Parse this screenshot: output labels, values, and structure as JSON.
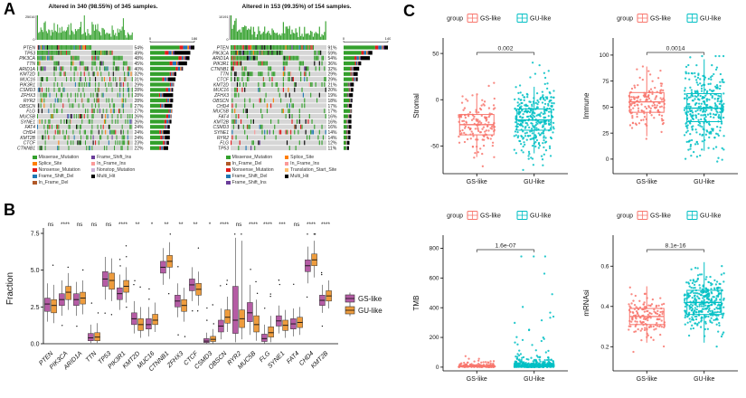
{
  "figure": {
    "panel_a_label": "A",
    "panel_b_label": "B",
    "panel_c_label": "C"
  },
  "colors": {
    "gs_b": "#B55CA5",
    "gu_b": "#EE9C3D",
    "gs_c": "#F8766D",
    "gu_c": "#00BFC4",
    "onco_bg": "#D6D6D6",
    "onco_bar_green": "#33A02C",
    "axis": "#000000"
  },
  "mutation_palette": [
    {
      "type": "Missense_Mutation",
      "color": "#33A02C",
      "w": 0.7
    },
    {
      "type": "Multi_Hit",
      "color": "#000000",
      "w": 0.1
    },
    {
      "type": "Nonsense_Mutation",
      "color": "#E31A1C",
      "w": 0.055
    },
    {
      "type": "Frame_Shift_Del",
      "color": "#1F78B4",
      "w": 0.055
    },
    {
      "type": "Splice_Site",
      "color": "#FF7F00",
      "w": 0.04
    },
    {
      "type": "Frame_Shift_Ins",
      "color": "#6A3D9A",
      "w": 0.025
    },
    {
      "type": "In_Frame_Del",
      "color": "#B15928",
      "w": 0.012
    },
    {
      "type": "In_Frame_Ins",
      "color": "#FB9A99",
      "w": 0.008
    },
    {
      "type": "Nonstop_Mutation",
      "color": "#CAB2D6",
      "w": 0.005
    }
  ],
  "chart_data": [
    {
      "type": "oncoprint",
      "title": "Altered in 340 (98.55%) of 345 samples.",
      "n_samples": 345,
      "tmb_axis": {
        "max": "25016",
        "min": "0"
      },
      "bar_axis": {
        "min": "0",
        "max": "186"
      },
      "genes": [
        {
          "name": "PTEN",
          "pct": 54
        },
        {
          "name": "TP53",
          "pct": 49
        },
        {
          "name": "PIK3CA",
          "pct": 48
        },
        {
          "name": "TTN",
          "pct": 45
        },
        {
          "name": "ARID1A",
          "pct": 40
        },
        {
          "name": "KMT2D",
          "pct": 32
        },
        {
          "name": "MUC16",
          "pct": 31
        },
        {
          "name": "PIK3R1",
          "pct": 29
        },
        {
          "name": "CSMD3",
          "pct": 28
        },
        {
          "name": "ZFHX3",
          "pct": 28
        },
        {
          "name": "RYR2",
          "pct": 28
        },
        {
          "name": "OBSCN",
          "pct": 27
        },
        {
          "name": "FLG",
          "pct": 27
        },
        {
          "name": "MUC5B",
          "pct": 26
        },
        {
          "name": "SYNE1",
          "pct": 26
        },
        {
          "name": "FAT4",
          "pct": 24
        },
        {
          "name": "CHD4",
          "pct": 24
        },
        {
          "name": "KMT2B",
          "pct": 24
        },
        {
          "name": "CTCF",
          "pct": 23
        },
        {
          "name": "CTNNB1",
          "pct": 22
        }
      ],
      "legend": [
        [
          {
            "label": "Missense_Mutation",
            "color": "#33A02C"
          },
          {
            "label": "Splice_Site",
            "color": "#FF7F00"
          },
          {
            "label": "Nonsense_Mutation",
            "color": "#E31A1C"
          },
          {
            "label": "Frame_Shift_Del",
            "color": "#1F78B4"
          },
          {
            "label": "In_Frame_Del",
            "color": "#B15928"
          }
        ],
        [
          {
            "label": "Frame_Shift_Ins",
            "color": "#6A3D9A"
          },
          {
            "label": "In_Frame_Ins",
            "color": "#FB9A99"
          },
          {
            "label": "Nonstop_Mutation",
            "color": "#CAB2D6"
          },
          {
            "label": "Multi_Hit",
            "color": "#000000"
          }
        ]
      ]
    },
    {
      "type": "oncoprint",
      "title": "Altered in 153 (99.35%) of 154 samples.",
      "n_samples": 154,
      "tmb_axis": {
        "max": "10191",
        "min": "0"
      },
      "bar_axis": {
        "min": "0",
        "max": "140"
      },
      "genes": [
        {
          "name": "PTEN",
          "pct": 91
        },
        {
          "name": "PIK3CA",
          "pct": 59
        },
        {
          "name": "ARID1A",
          "pct": 54
        },
        {
          "name": "PIK3R1",
          "pct": 36
        },
        {
          "name": "CTNNB1",
          "pct": 32
        },
        {
          "name": "TTN",
          "pct": 29
        },
        {
          "name": "CTCF",
          "pct": 29
        },
        {
          "name": "KMT2D",
          "pct": 21
        },
        {
          "name": "MUC16",
          "pct": 20
        },
        {
          "name": "ZFHX3",
          "pct": 19
        },
        {
          "name": "OBSCN",
          "pct": 18
        },
        {
          "name": "CHD4",
          "pct": 17
        },
        {
          "name": "MUC5B",
          "pct": 17
        },
        {
          "name": "FAT4",
          "pct": 16
        },
        {
          "name": "KMT2B",
          "pct": 16
        },
        {
          "name": "CSMD3",
          "pct": 16
        },
        {
          "name": "SYNE1",
          "pct": 14
        },
        {
          "name": "RYR2",
          "pct": 14
        },
        {
          "name": "FLG",
          "pct": 12
        },
        {
          "name": "TP53",
          "pct": 11
        }
      ],
      "legend": [
        [
          {
            "label": "Missense_Mutation",
            "color": "#33A02C"
          },
          {
            "label": "In_Frame_Del",
            "color": "#B15928"
          },
          {
            "label": "Nonsense_Mutation",
            "color": "#E31A1C"
          },
          {
            "label": "Frame_Shift_Del",
            "color": "#1F78B4"
          },
          {
            "label": "Frame_Shift_Ins",
            "color": "#6A3D9A"
          }
        ],
        [
          {
            "label": "Splice_Site",
            "color": "#FF7F00"
          },
          {
            "label": "In_Frame_Ins",
            "color": "#FB9A99"
          },
          {
            "label": "Translation_Start_Site",
            "color": "#FDBF6F"
          },
          {
            "label": "Multi_Hit",
            "color": "#000000"
          }
        ]
      ]
    },
    {
      "type": "boxplot",
      "ylabel": "Fraction",
      "ymax": 7.5,
      "yticks": [
        "0.0",
        "2.5",
        "5.0",
        "7.5"
      ],
      "legend": [
        {
          "label": "GS-like",
          "color": "#B55CA5"
        },
        {
          "label": "GU-like",
          "color": "#EE9C3D"
        }
      ],
      "groups": [
        {
          "gene": "PTEN",
          "sig": "ns",
          "gs": [
            1.5,
            2.2,
            2.7,
            3.1,
            4.1
          ],
          "gu": [
            1.4,
            2.1,
            2.6,
            3.0,
            4.0
          ]
        },
        {
          "gene": "PIK3CA",
          "sig": "****",
          "gs": [
            1.9,
            2.6,
            3.0,
            3.4,
            4.3
          ],
          "gu": [
            2.3,
            3.0,
            3.5,
            3.9,
            4.8
          ]
        },
        {
          "gene": "ARID1A",
          "sig": "ns",
          "gs": [
            1.9,
            2.6,
            3.0,
            3.4,
            4.2
          ],
          "gu": [
            2.0,
            2.7,
            3.1,
            3.5,
            4.3
          ]
        },
        {
          "gene": "TTN",
          "sig": "ns",
          "gs": [
            0.05,
            0.2,
            0.4,
            0.7,
            1.3
          ],
          "gu": [
            0.05,
            0.2,
            0.45,
            0.75,
            1.4
          ]
        },
        {
          "gene": "TP53",
          "sig": "ns",
          "gs": [
            3.0,
            3.9,
            4.4,
            4.9,
            5.9
          ],
          "gu": [
            2.9,
            3.7,
            4.3,
            4.8,
            5.8
          ]
        },
        {
          "gene": "PIK3R1",
          "sig": "****",
          "gs": [
            2.3,
            3.0,
            3.4,
            3.8,
            4.7
          ],
          "gu": [
            2.8,
            3.5,
            3.9,
            4.3,
            5.2
          ]
        },
        {
          "gene": "KMT2D",
          "sig": "**",
          "gs": [
            0.7,
            1.3,
            1.7,
            2.1,
            2.9
          ],
          "gu": [
            0.4,
            0.9,
            1.3,
            1.7,
            2.5
          ]
        },
        {
          "gene": "MUC16",
          "sig": "*",
          "gs": [
            0.5,
            1.0,
            1.3,
            1.7,
            2.5
          ],
          "gu": [
            0.8,
            1.3,
            1.6,
            2.0,
            2.8
          ]
        },
        {
          "gene": "CTNNB1",
          "sig": "**",
          "gs": [
            4.0,
            4.8,
            5.2,
            5.6,
            6.5
          ],
          "gu": [
            4.4,
            5.2,
            5.6,
            6.0,
            6.9
          ]
        },
        {
          "gene": "ZFHX3",
          "sig": "**",
          "gs": [
            1.8,
            2.5,
            2.9,
            3.3,
            4.1
          ],
          "gu": [
            1.5,
            2.2,
            2.6,
            3.0,
            3.8
          ]
        },
        {
          "gene": "CTCF",
          "sig": "**",
          "gs": [
            2.9,
            3.6,
            4.0,
            4.4,
            5.2
          ],
          "gu": [
            2.6,
            3.3,
            3.7,
            4.1,
            4.9
          ]
        },
        {
          "gene": "CSMD3",
          "sig": "*",
          "gs": [
            0.0,
            0.08,
            0.18,
            0.35,
            0.75
          ],
          "gu": [
            0.02,
            0.15,
            0.3,
            0.5,
            1.0
          ]
        },
        {
          "gene": "OBSCN",
          "sig": "****",
          "gs": [
            0.3,
            0.8,
            1.2,
            1.6,
            2.4
          ],
          "gu": [
            0.8,
            1.4,
            1.8,
            2.3,
            3.2
          ]
        },
        {
          "gene": "RYR2",
          "sig": "ns",
          "gs": [
            0.1,
            0.7,
            1.6,
            3.9,
            7.2
          ],
          "gu": [
            0.3,
            1.1,
            1.7,
            2.3,
            7.0
          ]
        },
        {
          "gene": "MUC5B",
          "sig": "****",
          "gs": [
            0.6,
            1.5,
            2.1,
            2.8,
            4.0
          ],
          "gu": [
            0.2,
            0.8,
            1.3,
            1.9,
            3.0
          ]
        },
        {
          "gene": "FLG",
          "sig": "****",
          "gs": [
            0.0,
            0.15,
            0.35,
            0.65,
            1.3
          ],
          "gu": [
            0.1,
            0.45,
            0.75,
            1.15,
            1.9
          ]
        },
        {
          "gene": "SYNE1",
          "sig": "***",
          "gs": [
            0.7,
            1.2,
            1.55,
            1.9,
            2.6
          ],
          "gu": [
            0.4,
            0.9,
            1.25,
            1.6,
            2.3
          ]
        },
        {
          "gene": "FAT4",
          "sig": "ns",
          "gs": [
            0.5,
            1.0,
            1.35,
            1.7,
            2.4
          ],
          "gu": [
            0.6,
            1.1,
            1.45,
            1.8,
            2.5
          ]
        },
        {
          "gene": "CHD4",
          "sig": "****",
          "gs": [
            4.1,
            4.9,
            5.3,
            5.7,
            6.6
          ],
          "gu": [
            4.5,
            5.3,
            5.7,
            6.1,
            7.0
          ]
        },
        {
          "gene": "KMT2B",
          "sig": "****",
          "gs": [
            2.1,
            2.6,
            2.95,
            3.3,
            4.0
          ],
          "gu": [
            2.4,
            2.9,
            3.25,
            3.6,
            4.3
          ]
        }
      ]
    },
    {
      "type": "box-jitter",
      "legend_title": "group",
      "groups": [
        {
          "label": "GS-like",
          "color": "#F8766D"
        },
        {
          "label": "GU-like",
          "color": "#00BFC4"
        }
      ],
      "xcats": [
        "GS-like",
        "GU-like"
      ],
      "plots": [
        {
          "ylabel": "Stromal",
          "pvalue": "0.002",
          "yticks": [
            "50",
            "0",
            "-50"
          ],
          "ylim": [
            -80,
            55
          ],
          "box_gs": [
            -62,
            -38,
            -27,
            -16,
            5
          ],
          "box_gu": [
            -58,
            -33,
            -22,
            -10,
            14
          ],
          "pts_gs": {
            "n": 150,
            "dist": "normal",
            "mean": -26,
            "sd": 16,
            "min": -72,
            "max": 28
          },
          "pts_gu": {
            "n": 330,
            "dist": "normal",
            "mean": -21,
            "sd": 19,
            "min": -76,
            "max": 46
          }
        },
        {
          "ylabel": "Immune",
          "pvalue": "0.0014",
          "yticks": [
            "0",
            "25",
            "50",
            "75",
            "100"
          ],
          "ylim": [
            -14,
            106
          ],
          "box_gs": [
            22,
            45,
            55,
            64,
            89
          ],
          "box_gu": [
            8,
            36,
            49,
            63,
            96
          ],
          "pts_gs": {
            "n": 150,
            "dist": "normal",
            "mean": 54,
            "sd": 14,
            "min": 12,
            "max": 91
          },
          "pts_gu": {
            "n": 330,
            "dist": "normal",
            "mean": 49,
            "sd": 19,
            "min": -10,
            "max": 99
          }
        },
        {
          "ylabel": "TMB",
          "pvalue": "1.6e-07",
          "yticks": [
            "0",
            "200",
            "400",
            "600",
            "800"
          ],
          "ylim": [
            -25,
            815
          ],
          "box_gs": [
            0,
            2,
            5,
            10,
            22
          ],
          "box_gu": [
            0,
            4,
            9,
            19,
            40
          ],
          "pts_gs": {
            "n": 150,
            "dist": "exp",
            "scale": 10,
            "spike": 0.05,
            "spikeMul": 8,
            "max": 230
          },
          "pts_gu": {
            "n": 330,
            "dist": "exp",
            "scale": 16,
            "spike": 0.16,
            "spikeMul": 12,
            "max": 745
          }
        },
        {
          "ylabel": "mRNAsi",
          "pvalue": "8.1e-16",
          "yticks": [
            "0.2",
            "0.4",
            "0.6"
          ],
          "ylim": [
            0.08,
            0.7
          ],
          "box_gs": [
            0.22,
            0.31,
            0.35,
            0.39,
            0.5
          ],
          "box_gu": [
            0.22,
            0.36,
            0.42,
            0.48,
            0.62
          ],
          "pts_gs": {
            "n": 150,
            "dist": "normal",
            "mean": 0.35,
            "sd": 0.055,
            "min": 0.1,
            "max": 0.58
          },
          "pts_gu": {
            "n": 330,
            "dist": "normal",
            "mean": 0.42,
            "sd": 0.07,
            "min": 0.15,
            "max": 0.65
          }
        }
      ]
    }
  ]
}
